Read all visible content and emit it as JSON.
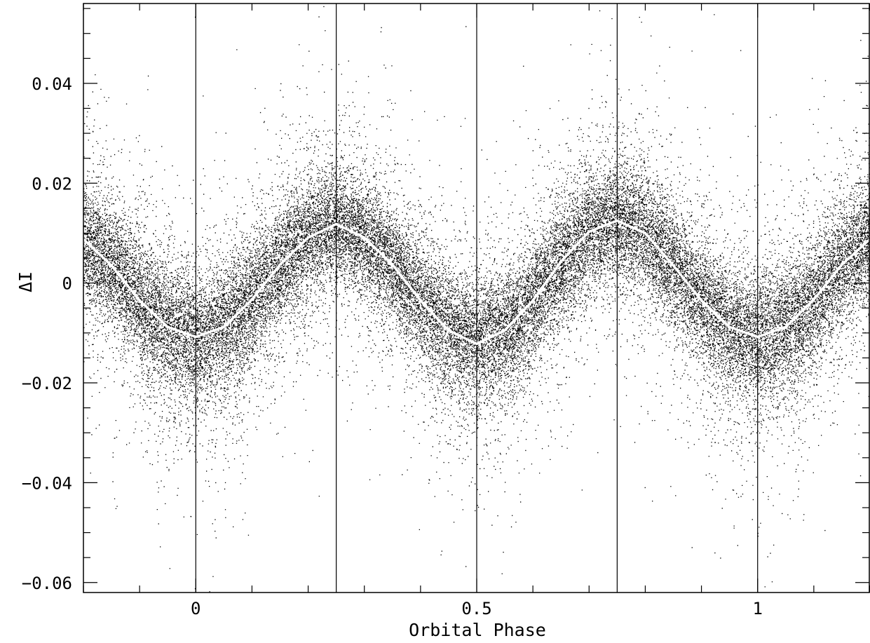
{
  "chart_data": {
    "type": "scatter",
    "title": "",
    "xlabel": "Orbital Phase",
    "ylabel": "ΔI",
    "xlim": [
      -0.2,
      1.2
    ],
    "ylim": [
      -0.062,
      0.056
    ],
    "x_ticks": [
      {
        "value": 0,
        "label": "0"
      },
      {
        "value": 0.5,
        "label": "0.5"
      },
      {
        "value": 1,
        "label": "1"
      }
    ],
    "x_minor_step": 0.1,
    "y_ticks": [
      {
        "value": 0.04,
        "label": "0.04"
      },
      {
        "value": 0.02,
        "label": "0.02"
      },
      {
        "value": 0,
        "label": "0"
      },
      {
        "value": -0.02,
        "label": "−0.02"
      },
      {
        "value": -0.04,
        "label": "−0.04"
      },
      {
        "value": -0.06,
        "label": "−0.06"
      }
    ],
    "y_minor_step": 0.005,
    "vertical_lines": [
      0,
      0.25,
      0.5,
      0.75,
      1
    ],
    "scatter_model": {
      "description_values": "dense scatter of ~40000 photometric points following the mean curve with ~0.006 mag core scatter and extended wings to ±0.05",
      "point_color": "#000000"
    },
    "series": [
      {
        "type": "line",
        "color": "#ffffff",
        "x": [
          -0.2,
          -0.15,
          -0.1,
          -0.05,
          0,
          0.05,
          0.1,
          0.15,
          0.2,
          0.25,
          0.3,
          0.35,
          0.4,
          0.45,
          0.5,
          0.55,
          0.6,
          0.65,
          0.7,
          0.75,
          0.8,
          0.85,
          0.9,
          0.95,
          1,
          1.05,
          1.1,
          1.15,
          1.2
        ],
        "y": [
          0.0088,
          0.0035,
          -0.0035,
          -0.0088,
          -0.0108,
          -0.0088,
          -0.0033,
          0.0037,
          0.0091,
          0.0118,
          0.0091,
          0.0037,
          -0.0035,
          -0.0095,
          -0.0122,
          -0.0095,
          -0.0035,
          0.0043,
          0.0103,
          0.0125,
          0.01,
          0.0035,
          -0.0035,
          -0.0088,
          -0.0108,
          -0.0088,
          -0.0033,
          0.0037,
          0.0088
        ]
      }
    ],
    "grid": false,
    "legend": "none"
  }
}
